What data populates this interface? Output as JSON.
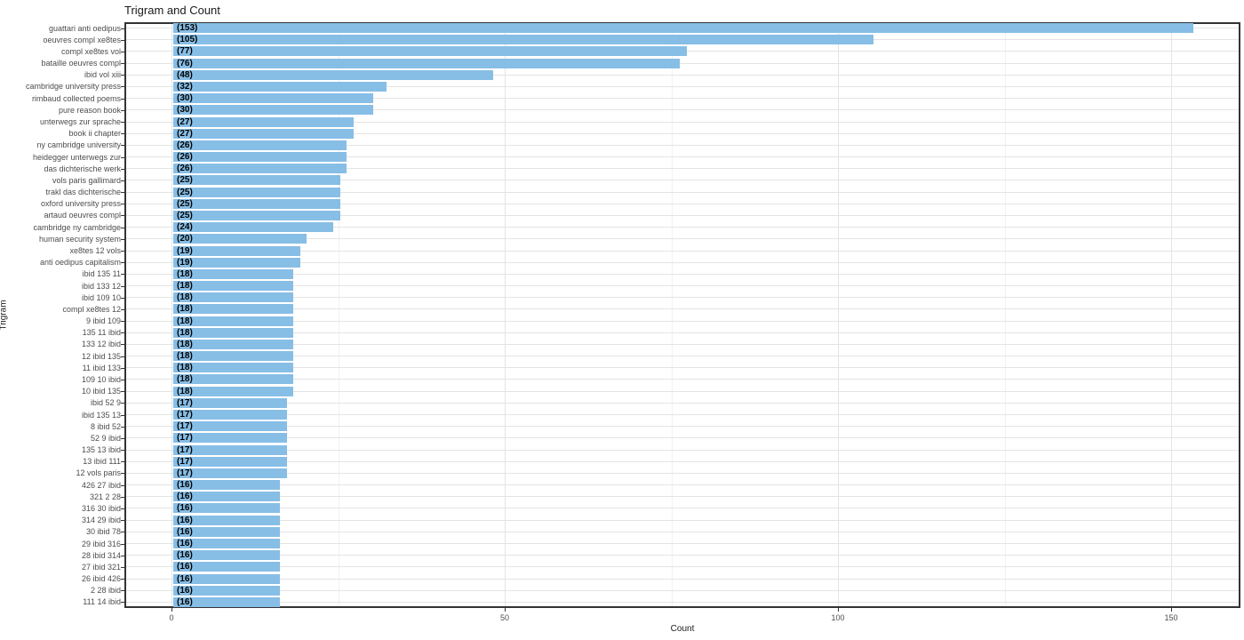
{
  "chart_data": {
    "type": "bar",
    "orientation": "horizontal",
    "title": "Trigram and Count",
    "xlabel": "Count",
    "ylabel": "Trigram",
    "x_major_ticks": [
      0,
      50,
      100,
      150
    ],
    "x_minor_ticks": [
      25,
      75,
      125
    ],
    "xlim": [
      -7.1,
      160.4
    ],
    "grid": "on",
    "bar_color": "#87BEE6",
    "bar_label_format": "parenthesized count at bar start",
    "categories": [
      "guattari anti oedipus",
      "oeuvres compl xe8tes",
      "compl xe8tes vol",
      "bataille oeuvres compl",
      "ibid vol xiii",
      "cambridge university press",
      "rimbaud collected poems",
      "pure reason book",
      "unterwegs zur sprache",
      "book ii chapter",
      "ny cambridge university",
      "heidegger unterwegs zur",
      "das dichterische werk",
      "vols paris gallimard",
      "trakl das dichterische",
      "oxford university press",
      "artaud oeuvres compl",
      "cambridge ny cambridge",
      "human security system",
      "xe8tes 12 vols",
      "anti oedipus capitalism",
      "ibid 135 11",
      "ibid 133 12",
      "ibid 109 10",
      "compl xe8tes 12",
      "9 ibid 109",
      "135 11 ibid",
      "133 12 ibid",
      "12 ibid 135",
      "11 ibid 133",
      "109 10 ibid",
      "10 ibid 135",
      "ibid 52 9",
      "ibid 135 13",
      "8 ibid 52",
      "52 9 ibid",
      "135 13 ibid",
      "13 ibid 111",
      "12 vols paris",
      "426 27 ibid",
      "321 2 28",
      "316 30 ibid",
      "314 29 ibid",
      "30 ibid 78",
      "29 ibid 316",
      "28 ibid 314",
      "27 ibid 321",
      "26 ibid 426",
      "2 28 ibid",
      "111 14 ibid"
    ],
    "values": [
      153,
      105,
      77,
      76,
      48,
      32,
      30,
      30,
      27,
      27,
      26,
      26,
      26,
      25,
      25,
      25,
      25,
      24,
      20,
      19,
      19,
      18,
      18,
      18,
      18,
      18,
      18,
      18,
      18,
      18,
      18,
      18,
      17,
      17,
      17,
      17,
      17,
      17,
      17,
      16,
      16,
      16,
      16,
      16,
      16,
      16,
      16,
      16,
      16,
      16
    ]
  }
}
